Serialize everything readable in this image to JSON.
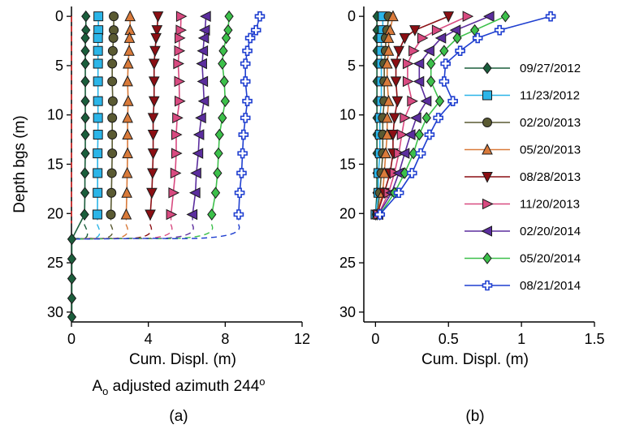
{
  "chart_data": [
    {
      "panel_label": "(a)",
      "type": "line",
      "xlabel": "Cum. Displ. (m)",
      "ylabel": "Depth bgs (m)",
      "caption_main": "A",
      "caption_sub": "o",
      "caption_rest": " adjusted azimuth 244",
      "caption_sup": "o",
      "xlim": [
        0,
        12
      ],
      "ylim": [
        31,
        -1
      ],
      "xticks": [
        0,
        4,
        8,
        12
      ],
      "xtick_labels": [
        "0",
        "4",
        "8",
        "12"
      ],
      "yticks": [
        0,
        5,
        10,
        15,
        20,
        25,
        30
      ],
      "ytick_labels": [
        "0",
        "5",
        "10",
        "15",
        "20",
        "25",
        "30"
      ],
      "depths": [
        0,
        1.4,
        2.2,
        3.5,
        4.8,
        6.6,
        8.6,
        10.3,
        12,
        13.9,
        15.9,
        17.9,
        20.1
      ],
      "series": [
        {
          "values": [
            0.75,
            0.75,
            0.72,
            0.72,
            0.72,
            0.72,
            0.72,
            0.72,
            0.72,
            0.72,
            0.7,
            0.7,
            0.68
          ]
        },
        {
          "values": [
            1.4,
            1.4,
            1.38,
            1.38,
            1.38,
            1.38,
            1.38,
            1.38,
            1.38,
            1.36,
            1.36,
            1.36,
            1.35
          ]
        },
        {
          "values": [
            2.2,
            2.2,
            2.18,
            2.15,
            2.12,
            2.12,
            2.15,
            2.12,
            2.12,
            2.12,
            2.1,
            2.08,
            2.05
          ]
        },
        {
          "values": [
            3.05,
            3.05,
            3.02,
            3.0,
            2.95,
            2.92,
            2.95,
            2.92,
            2.92,
            2.92,
            2.9,
            2.88,
            2.85
          ]
        },
        {
          "values": [
            4.5,
            4.45,
            4.4,
            4.35,
            4.3,
            4.3,
            4.3,
            4.25,
            4.25,
            4.25,
            4.22,
            4.18,
            4.1
          ]
        },
        {
          "values": [
            5.7,
            5.68,
            5.62,
            5.6,
            5.55,
            5.6,
            5.62,
            5.5,
            5.45,
            5.45,
            5.4,
            5.3,
            5.18
          ]
        },
        {
          "values": [
            7.0,
            6.95,
            6.9,
            6.85,
            6.8,
            6.85,
            6.9,
            6.75,
            6.65,
            6.6,
            6.5,
            6.45,
            6.3
          ]
        },
        {
          "values": [
            8.2,
            8.15,
            8.05,
            7.9,
            7.85,
            7.95,
            8.0,
            7.85,
            7.7,
            7.65,
            7.6,
            7.5,
            7.3
          ]
        },
        {
          "values": [
            9.8,
            9.6,
            9.3,
            9.15,
            9.05,
            9.05,
            9.15,
            9.05,
            8.95,
            8.9,
            8.85,
            8.75,
            8.7
          ]
        }
      ],
      "reference_x": 0,
      "reference_depths": [
        0,
        21
      ],
      "lower_series": {
        "depths": [
          22.6,
          24.6,
          26.6,
          28.6,
          30.5
        ],
        "values": [
          0.02,
          0.02,
          0.02,
          0.02,
          0.02
        ]
      },
      "connector_depths": [
        21,
        22.6
      ]
    },
    {
      "panel_label": "(b)",
      "type": "line",
      "xlabel": "Cum. Displ. (m)",
      "xlim": [
        -0.08,
        1.5
      ],
      "ylim": [
        31,
        -1
      ],
      "xticks": [
        0,
        0.5,
        1,
        1.5
      ],
      "xtick_labels": [
        "0",
        "0.5",
        "1",
        "1.5"
      ],
      "yticks": [
        0,
        5,
        10,
        15,
        20,
        25,
        30
      ],
      "ytick_labels": [
        "0",
        "5",
        "10",
        "15",
        "20",
        "25",
        "30"
      ],
      "depths": [
        0,
        1.4,
        2.2,
        3.5,
        4.8,
        6.6,
        8.6,
        10.3,
        12,
        13.9,
        15.9,
        17.9,
        20.1
      ],
      "series": [
        {
          "name": "09/27/2012",
          "color": "#1b5e3c",
          "marker": "diamond",
          "values": [
            0.01,
            0.01,
            0.01,
            0.01,
            0.01,
            0.01,
            0.01,
            0.01,
            0.01,
            0.01,
            0.01,
            0.01,
            0.0
          ]
        },
        {
          "name": "11/23/2012",
          "color": "#2bb5e8",
          "marker": "square",
          "values": [
            0.05,
            0.05,
            0.04,
            0.04,
            0.04,
            0.04,
            0.04,
            0.03,
            0.03,
            0.03,
            0.02,
            0.02,
            0.0
          ]
        },
        {
          "name": "02/20/2013",
          "color": "#5a5a32",
          "marker": "circle",
          "values": [
            0.09,
            0.08,
            0.07,
            0.07,
            0.06,
            0.06,
            0.06,
            0.05,
            0.05,
            0.05,
            0.04,
            0.03,
            0.01
          ]
        },
        {
          "name": "05/20/2013",
          "color": "#d97a3a",
          "marker": "triangle-up",
          "values": [
            0.12,
            0.1,
            0.09,
            0.09,
            0.08,
            0.08,
            0.09,
            0.08,
            0.08,
            0.07,
            0.06,
            0.05,
            0.01
          ]
        },
        {
          "name": "08/28/2013",
          "color": "#8b0f14",
          "marker": "triangle-down",
          "values": [
            0.5,
            0.27,
            0.2,
            0.16,
            0.14,
            0.14,
            0.15,
            0.13,
            0.12,
            0.12,
            0.1,
            0.06,
            0.01
          ]
        },
        {
          "name": "11/20/2013",
          "color": "#d84a80",
          "marker": "triangle-right",
          "values": [
            0.63,
            0.42,
            0.32,
            0.26,
            0.22,
            0.22,
            0.25,
            0.2,
            0.18,
            0.16,
            0.13,
            0.09,
            0.02
          ]
        },
        {
          "name": "02/20/2014",
          "color": "#5b2d9e",
          "marker": "triangle-left",
          "values": [
            0.78,
            0.55,
            0.45,
            0.37,
            0.3,
            0.3,
            0.35,
            0.28,
            0.24,
            0.2,
            0.16,
            0.11,
            0.02
          ]
        },
        {
          "name": "05/20/2014",
          "color": "#3cc04a",
          "marker": "diamond",
          "values": [
            0.89,
            0.68,
            0.56,
            0.47,
            0.38,
            0.38,
            0.44,
            0.35,
            0.3,
            0.26,
            0.2,
            0.13,
            0.03
          ]
        },
        {
          "name": "08/21/2014",
          "color": "#1f3fd0",
          "marker": "cross",
          "values": [
            1.2,
            0.85,
            0.7,
            0.58,
            0.48,
            0.47,
            0.53,
            0.43,
            0.37,
            0.31,
            0.25,
            0.16,
            0.03
          ]
        }
      ]
    }
  ]
}
